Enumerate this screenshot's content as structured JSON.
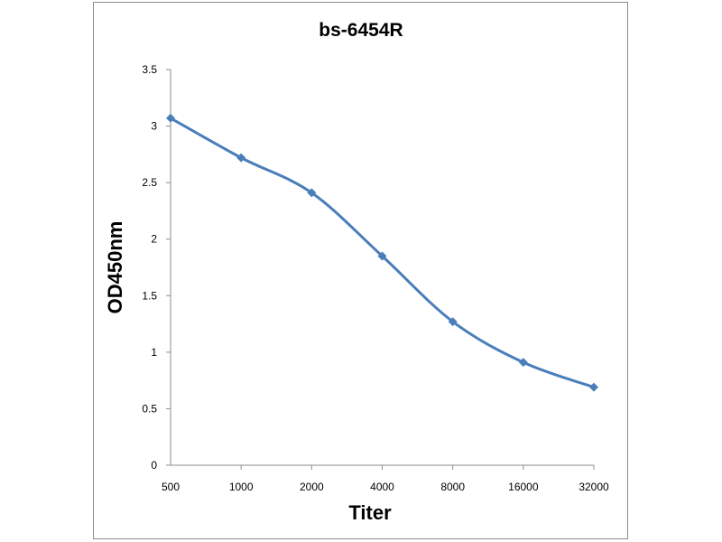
{
  "chart_data": {
    "type": "line",
    "title": "bs-6454R",
    "xlabel": "Titer",
    "ylabel": "OD450nm",
    "categories": [
      "500",
      "1000",
      "2000",
      "4000",
      "8000",
      "16000",
      "32000"
    ],
    "series": [
      {
        "values": [
          3.07,
          2.72,
          2.41,
          1.85,
          1.27,
          0.91,
          0.69
        ]
      }
    ],
    "ylim": [
      0,
      3.5
    ],
    "yticks": [
      "0",
      "0.5",
      "1",
      "1.5",
      "2",
      "2.5",
      "3",
      "3.5"
    ],
    "grid": false,
    "legend": "none",
    "smooth": true,
    "marker": "diamond",
    "line_color": "#4a7ebb"
  }
}
